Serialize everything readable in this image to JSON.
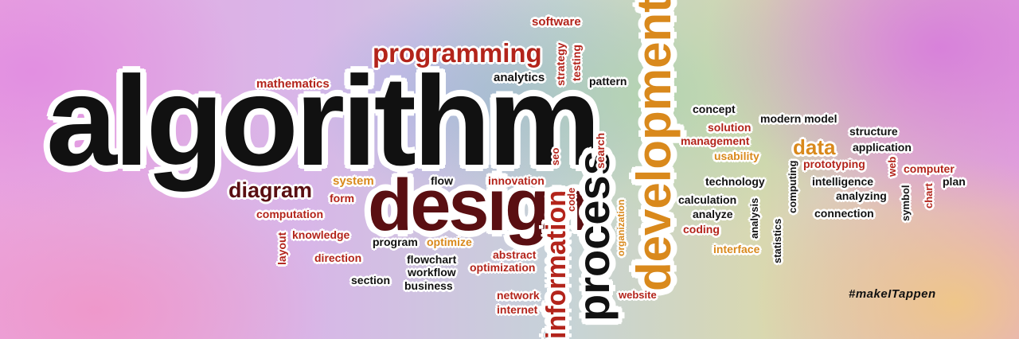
{
  "words": {
    "algorithm": "algorithm",
    "design": "design",
    "process": "process",
    "development": "development",
    "information": "information",
    "programming": "programming",
    "software": "software",
    "strategy": "strategy",
    "testing": "testing",
    "analytics": "analytics",
    "pattern": "pattern",
    "mathematics": "mathematics",
    "diagram": "diagram",
    "system": "system",
    "form": "form",
    "computation": "computation",
    "layout": "layout",
    "knowledge": "knowledge",
    "direction": "direction",
    "section": "section",
    "flow": "flow",
    "innovation": "innovation",
    "seo": "seo",
    "search": "search",
    "code": "code",
    "program": "program",
    "optimize": "optimize",
    "flowchart": "flowchart",
    "workflow": "workflow",
    "business": "business",
    "abstract": "abstract",
    "optimization": "optimization",
    "network": "network",
    "internet": "internet",
    "organization": "organization",
    "website": "website",
    "concept": "concept",
    "solution": "solution",
    "management": "management",
    "usability": "usability",
    "modern_model": "modern model",
    "structure": "structure",
    "data": "data",
    "application": "application",
    "prototyping": "prototyping",
    "web": "web",
    "computer": "computer",
    "technology": "technology",
    "computing": "computing",
    "intelligence": "intelligence",
    "plan": "plan",
    "calculation": "calculation",
    "analyze": "analyze",
    "analysis": "analysis",
    "analyzing": "analyzing",
    "symbol": "symbol",
    "chart": "chart",
    "coding": "coding",
    "statistics": "statistics",
    "connection": "connection",
    "interface": "interface"
  },
  "hashtag": "#makeITappen",
  "colors": {
    "black": "#111111",
    "red": "#b3241b",
    "dark_red": "#5a0f12",
    "orange": "#d9891c"
  }
}
